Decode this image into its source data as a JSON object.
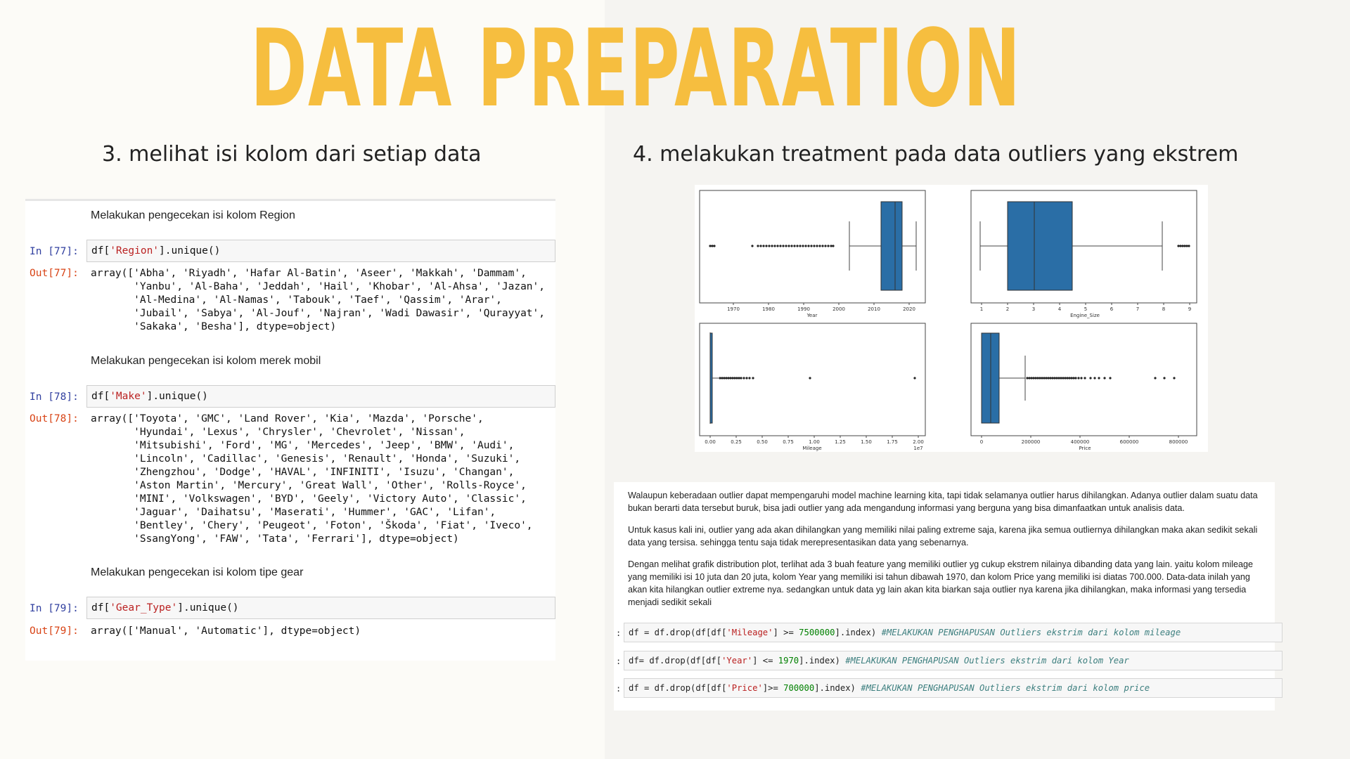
{
  "slide": {
    "title": "DATA PREPARATION",
    "left_heading": "3. melihat isi kolom dari setiap data",
    "right_heading": "4. melakukan treatment pada data outliers yang ekstrem"
  },
  "notebook": {
    "cells": [
      {
        "markdown": "Melakukan pengecekan isi kolom Region",
        "in_prompt": "In [77]:",
        "code_pre": "df[",
        "code_str": "'Region'",
        "code_post": "].unique()",
        "out_prompt": "Out[77]:",
        "output": "array(['Abha', 'Riyadh', 'Hafar Al-Batin', 'Aseer', 'Makkah', 'Dammam',\n       'Yanbu', 'Al-Baha', 'Jeddah', 'Hail', 'Khobar', 'Al-Ahsa', 'Jazan',\n       'Al-Medina', 'Al-Namas', 'Tabouk', 'Taef', 'Qassim', 'Arar',\n       'Jubail', 'Sabya', 'Al-Jouf', 'Najran', 'Wadi Dawasir', 'Qurayyat',\n       'Sakaka', 'Besha'], dtype=object)"
      },
      {
        "markdown": "Melakukan pengecekan isi kolom merek mobil",
        "in_prompt": "In [78]:",
        "code_pre": "df[",
        "code_str": "'Make'",
        "code_post": "].unique()",
        "out_prompt": "Out[78]:",
        "output": "array(['Toyota', 'GMC', 'Land Rover', 'Kia', 'Mazda', 'Porsche',\n       'Hyundai', 'Lexus', 'Chrysler', 'Chevrolet', 'Nissan',\n       'Mitsubishi', 'Ford', 'MG', 'Mercedes', 'Jeep', 'BMW', 'Audi',\n       'Lincoln', 'Cadillac', 'Genesis', 'Renault', 'Honda', 'Suzuki',\n       'Zhengzhou', 'Dodge', 'HAVAL', 'INFINITI', 'Isuzu', 'Changan',\n       'Aston Martin', 'Mercury', 'Great Wall', 'Other', 'Rolls-Royce',\n       'MINI', 'Volkswagen', 'BYD', 'Geely', 'Victory Auto', 'Classic',\n       'Jaguar', 'Daihatsu', 'Maserati', 'Hummer', 'GAC', 'Lifan',\n       'Bentley', 'Chery', 'Peugeot', 'Foton', 'Škoda', 'Fiat', 'Iveco',\n       'SsangYong', 'FAW', 'Tata', 'Ferrari'], dtype=object)"
      },
      {
        "markdown": "Melakukan pengecekan isi kolom tipe gear",
        "in_prompt": "In [79]:",
        "code_pre": "df[",
        "code_str": "'Gear_Type'",
        "code_post": "].unique()",
        "out_prompt": "Out[79]:",
        "output": "array(['Manual', 'Automatic'], dtype=object)"
      }
    ]
  },
  "plots": {
    "box_color": "#2a6ea6",
    "panels": [
      {
        "xlabel": "Year",
        "ticks": [
          "1970",
          "1980",
          "1990",
          "2000",
          "2010",
          "2020"
        ]
      },
      {
        "xlabel": "Engine_Size",
        "ticks": [
          "1",
          "2",
          "3",
          "4",
          "5",
          "6",
          "7",
          "8",
          "9"
        ]
      },
      {
        "xlabel": "Mileage",
        "ticks": [
          "0.00",
          "0.25",
          "0.50",
          "0.75",
          "1.00",
          "1.25",
          "1.50",
          "1.75",
          "2.00"
        ],
        "offset": "1e7"
      },
      {
        "xlabel": "Price",
        "ticks": [
          "0",
          "200000",
          "400000",
          "600000",
          "800000"
        ]
      }
    ]
  },
  "notes": {
    "p1": "Walaupun keberadaan outlier dapat mempengaruhi model machine learning kita, tapi tidak selamanya outlier harus dihilangkan. Adanya outlier dalam suatu data bukan berarti data tersebut buruk, bisa jadi outlier yang ada mengandung informasi yang berguna yang bisa dimanfaatkan untuk analisis data.",
    "p2": "Untuk kasus kali ini, outlier yang ada akan dihilangkan yang memiliki nilai paling extreme saja, karena jika semua outliernya dihilangkan maka akan sedikit sekali data yang tersisa. sehingga tentu saja tidak merepresentasikan data yang sebenarnya.",
    "p3": "Dengan melihat grafik distribution plot, terlihat ada 3 buah feature yang memiliki outlier yg cukup ekstrem nilainya dibanding data yang lain. yaitu kolom mileage yang memiliki isi 10 juta dan 20 juta, kolom Year yang memiliki isi tahun dibawah 1970, dan kolom Price yang memiliki isi diatas 700.000. Data-data inilah yang akan kita hilangkan outlier extreme nya. sedangkan untuk data yg lain akan kita biarkan saja outlier nya karena jika dihilangkan, maka informasi yang tersedia menjadi sedikit sekali",
    "prompt": ":",
    "code1": {
      "a": "df = df.drop(df[df[",
      "s": "'Mileage'",
      "b": "] >= ",
      "n": "7500000",
      "c": "].index) ",
      "cm": "#MELAKUKAN PENGHAPUSAN Outliers ekstrim dari kolom mileage"
    },
    "code2": {
      "a": "df= df.drop(df[df[",
      "s": "'Year'",
      "b": "] <= ",
      "n": "1970",
      "c": "].index) ",
      "cm": "#MELAKUKAN PENGHAPUSAN Outliers ekstrim dari kolom Year"
    },
    "code3": {
      "a": "df = df.drop(df[df[",
      "s": "'Price'",
      "b": "]>= ",
      "n": "700000",
      "c": "].index) ",
      "cm": "#MELAKUKAN PENGHAPUSAN Outliers ekstrim dari kolom price"
    }
  }
}
